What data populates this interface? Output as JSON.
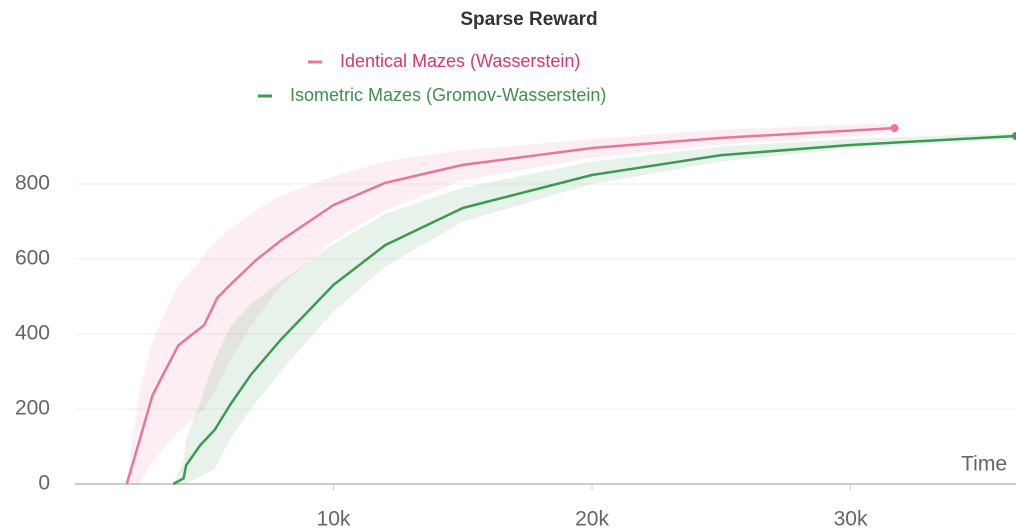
{
  "chart_data": {
    "type": "line",
    "title": "Sparse Reward",
    "x_label": "Time",
    "xlim": [
      0,
      36400
    ],
    "ylim": [
      0,
      1000
    ],
    "xticks": [
      {
        "value": 10000,
        "label": "10k"
      },
      {
        "value": 20000,
        "label": "20k"
      },
      {
        "value": 30000,
        "label": "30k"
      }
    ],
    "yticks": [
      0,
      200,
      400,
      600,
      800
    ],
    "grid": true,
    "series": [
      {
        "name": "Identical Mazes (Wasserstein)",
        "color": "#e8769a",
        "label_color": "#d6376d",
        "x": [
          2000,
          2500,
          3000,
          3500,
          4000,
          5000,
          5500,
          6000,
          7000,
          8000,
          10000,
          12000,
          15000,
          20000,
          25000,
          31700
        ],
        "values": [
          0,
          117,
          237,
          304,
          370,
          424,
          496,
          531,
          597,
          651,
          744,
          803,
          851,
          896,
          923,
          949
        ],
        "lower": [
          0,
          0,
          60,
          100,
          140,
          200,
          260,
          330,
          440,
          530,
          650,
          730,
          810,
          870,
          905,
          935
        ],
        "upper": [
          0,
          250,
          380,
          460,
          530,
          610,
          650,
          680,
          730,
          770,
          820,
          860,
          890,
          920,
          945,
          962
        ]
      },
      {
        "name": "Isometric Mazes (Gromov-Wasserstein)",
        "color": "#3d9a55",
        "label_color": "#3f8f4f",
        "x": [
          3800,
          4200,
          4300,
          4850,
          5400,
          6000,
          6800,
          7950,
          10000,
          12000,
          15000,
          20000,
          25000,
          30000,
          36400
        ],
        "values": [
          0,
          15,
          50,
          104,
          144,
          211,
          291,
          384,
          531,
          637,
          736,
          824,
          877,
          904,
          928
        ],
        "lower": [
          0,
          0,
          0,
          20,
          40,
          120,
          200,
          300,
          460,
          580,
          700,
          800,
          860,
          895,
          920
        ],
        "upper": [
          0,
          60,
          120,
          220,
          330,
          420,
          480,
          540,
          640,
          720,
          790,
          860,
          900,
          920,
          936
        ]
      }
    ]
  }
}
